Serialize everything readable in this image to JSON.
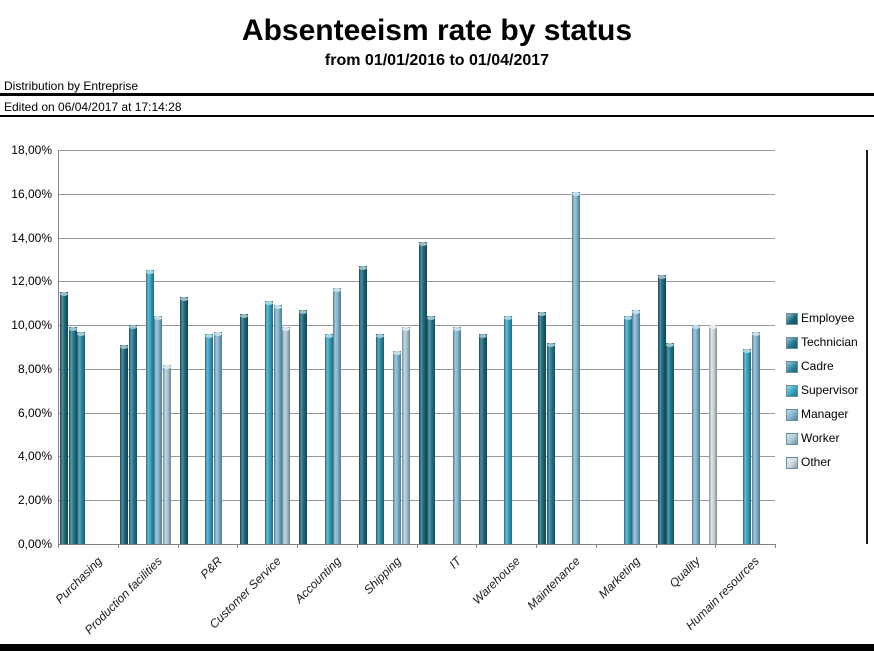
{
  "header": {
    "title": "Absenteeism rate by status",
    "subtitle": "from 01/01/2016 to 01/04/2017",
    "distribution_label": "Distribution by Entreprise",
    "edited_label": "Edited on 06/04/2017 at 17:14:28"
  },
  "chart_data": {
    "type": "bar",
    "title": "Absenteeism rate by status",
    "subtitle": "from 01/01/2016 to 01/04/2017",
    "categories": [
      "Purchasing",
      "Production facilities",
      "P&R",
      "Customer Service",
      "Accounting",
      "Shipping",
      "IT",
      "Warehouse",
      "Maintenance",
      "Marketing",
      "Quality",
      "Humain resources"
    ],
    "series": [
      {
        "name": "Employee",
        "color": "#1c6a7e",
        "values": [
          11.5,
          9.1,
          11.3,
          10.5,
          10.7,
          12.7,
          13.8,
          9.6,
          10.6,
          null,
          12.3,
          null
        ]
      },
      {
        "name": "Technician",
        "color": "#22798f",
        "values": [
          9.9,
          10.0,
          null,
          null,
          null,
          null,
          10.4,
          null,
          9.2,
          null,
          9.2,
          null
        ]
      },
      {
        "name": "Cadre",
        "color": "#2d8ba3",
        "values": [
          9.7,
          null,
          null,
          null,
          null,
          9.6,
          null,
          null,
          null,
          null,
          null,
          null
        ]
      },
      {
        "name": "Supervisor",
        "color": "#35a3c0",
        "values": [
          null,
          12.5,
          9.6,
          11.1,
          9.6,
          null,
          null,
          10.4,
          null,
          10.4,
          null,
          8.9
        ]
      },
      {
        "name": "Manager",
        "color": "#7fb6d0",
        "values": [
          null,
          10.4,
          9.7,
          10.9,
          11.7,
          8.8,
          9.9,
          null,
          16.1,
          10.7,
          10.0,
          9.7
        ]
      },
      {
        "name": "Worker",
        "color": "#a9c9d7",
        "values": [
          null,
          8.2,
          null,
          9.9,
          null,
          9.9,
          null,
          null,
          null,
          null,
          null,
          null
        ]
      },
      {
        "name": "Other",
        "color": "#cdd9df",
        "values": [
          null,
          null,
          null,
          null,
          null,
          null,
          null,
          null,
          null,
          null,
          10.0,
          null
        ]
      }
    ],
    "ylabel": "",
    "xlabel": "",
    "ylim": [
      0,
      18
    ],
    "ytick_step": 2,
    "ytick_labels": [
      "0,00%",
      "2,00%",
      "4,00%",
      "6,00%",
      "8,00%",
      "10,00%",
      "12,00%",
      "14,00%",
      "16,00%",
      "18,00%"
    ],
    "grid": true,
    "legend_position": "right",
    "value_unit": "%"
  }
}
